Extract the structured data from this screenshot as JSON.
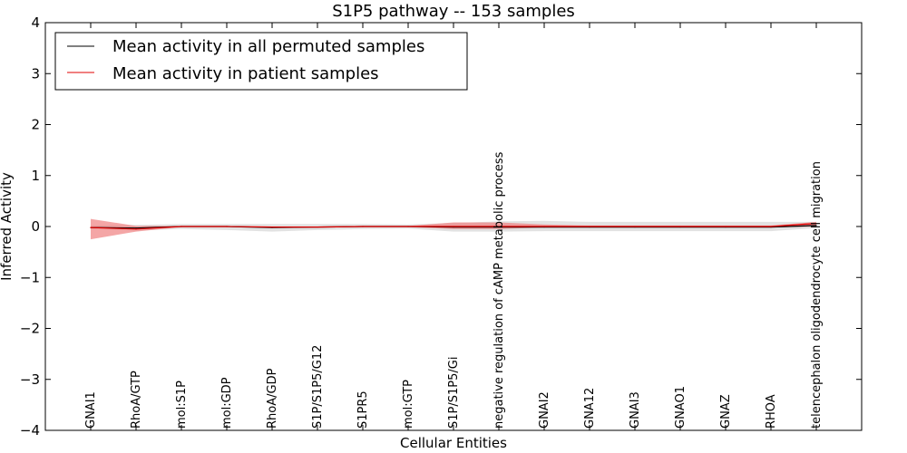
{
  "chart_data": {
    "type": "line",
    "title": "S1P5 pathway -- 153 samples",
    "xlabel": "Cellular Entities",
    "ylabel": "Inferred Activity",
    "ylim": [
      -4,
      4
    ],
    "yticks": [
      -4,
      -3,
      -2,
      -1,
      0,
      1,
      2,
      3,
      4
    ],
    "ytick_labels": [
      "−4",
      "−3",
      "−2",
      "−1",
      "0",
      "1",
      "2",
      "3",
      "4"
    ],
    "categories": [
      "GNAI1",
      "RhoA/GTP",
      "mol:S1P",
      "mol:GDP",
      "RhoA/GDP",
      "S1P/S1P5/G12",
      "S1PR5",
      "mol:GTP",
      "S1P/S1P5/Gi",
      "negative regulation of cAMP metabolic process",
      "GNAI2",
      "GNA12",
      "GNAI3",
      "GNAO1",
      "GNAZ",
      "RHOA",
      "telencephalon oligodendrocyte cell migration"
    ],
    "legend_position": "top-left",
    "series": [
      {
        "name": "Mean activity in all permuted samples",
        "color": "#000000",
        "values": [
          -0.02,
          -0.03,
          0.0,
          0.0,
          -0.02,
          -0.01,
          0.0,
          0.0,
          -0.01,
          -0.01,
          -0.01,
          -0.01,
          -0.01,
          -0.01,
          -0.01,
          -0.01,
          0.02
        ],
        "band_lower": [
          -0.05,
          -0.08,
          -0.05,
          -0.07,
          -0.1,
          -0.07,
          -0.05,
          -0.04,
          -0.1,
          -0.1,
          -0.09,
          -0.09,
          -0.09,
          -0.09,
          -0.09,
          -0.09,
          -0.03
        ],
        "band_upper": [
          0.02,
          0.03,
          0.05,
          0.05,
          0.05,
          0.05,
          0.05,
          0.04,
          0.07,
          0.1,
          0.11,
          0.09,
          0.09,
          0.09,
          0.09,
          0.09,
          0.09
        ],
        "band_color": "#d8d8d8"
      },
      {
        "name": "Mean activity in patient samples",
        "color": "#e00000",
        "values": [
          -0.02,
          -0.05,
          0.0,
          0.0,
          -0.01,
          -0.01,
          0.0,
          0.0,
          0.0,
          0.0,
          0.0,
          0.0,
          0.0,
          0.0,
          0.0,
          0.0,
          0.06
        ],
        "band_lower": [
          -0.25,
          -0.1,
          -0.01,
          -0.01,
          -0.02,
          -0.02,
          -0.01,
          -0.01,
          -0.05,
          -0.05,
          -0.02,
          -0.02,
          -0.02,
          -0.02,
          -0.02,
          -0.02,
          0.0
        ],
        "band_upper": [
          0.15,
          0.01,
          0.01,
          0.01,
          0.0,
          0.0,
          0.01,
          0.01,
          0.08,
          0.08,
          0.04,
          0.02,
          0.02,
          0.02,
          0.02,
          0.02,
          0.09
        ],
        "band_color": "#f08080"
      }
    ]
  }
}
